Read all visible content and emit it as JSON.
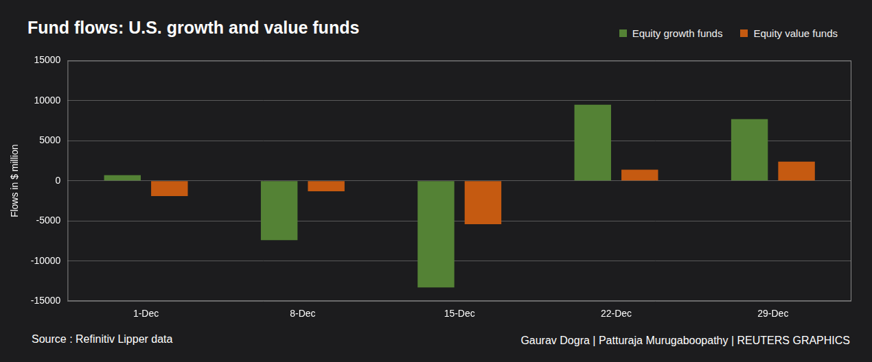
{
  "chart_data": {
    "type": "bar",
    "title": "Fund flows: U.S. growth and value funds",
    "y_label": "Flows in $ million",
    "source": "Source : Refinitiv Lipper data",
    "credit": "Gaurav Dogra | Patturaja Murugaboopathy | REUTERS GRAPHICS",
    "categories": [
      "1-Dec",
      "8-Dec",
      "15-Dec",
      "22-Dec",
      "29-Dec"
    ],
    "series": [
      {
        "name": "Equity growth funds",
        "color": "#548235",
        "values": [
          700,
          -7400,
          -13300,
          9500,
          7700
        ]
      },
      {
        "name": "Equity value funds",
        "color": "#c55a11",
        "values": [
          -1900,
          -1300,
          -5400,
          1400,
          2400
        ]
      }
    ],
    "ylim": [
      -15000,
      15000
    ],
    "yticks": [
      -15000,
      -10000,
      -5000,
      0,
      5000,
      10000,
      15000
    ],
    "grid": true,
    "legend": "top-right"
  }
}
